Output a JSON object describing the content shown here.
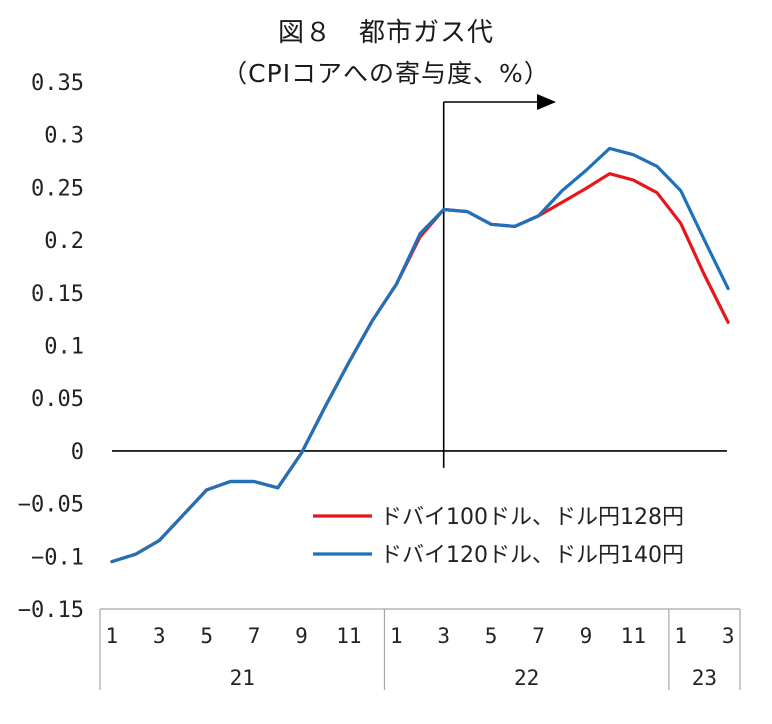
{
  "chart_data": {
    "type": "line",
    "title": "図８　都市ガス代",
    "subtitle": "（CPIコアへの寄与度、%）",
    "ylim": [
      -0.15,
      0.35
    ],
    "yticks": [
      "0.35",
      "0.3",
      "0.25",
      "0.2",
      "0.15",
      "0.1",
      "0.05",
      "0",
      "-0.05",
      "-0.1",
      "-0.15"
    ],
    "x": [
      "1",
      "2",
      "3",
      "4",
      "5",
      "6",
      "7",
      "8",
      "9",
      "10",
      "11",
      "12",
      "1",
      "2",
      "3",
      "4",
      "5",
      "6",
      "7",
      "8",
      "9",
      "10",
      "11",
      "12",
      "1",
      "2",
      "3"
    ],
    "xtick_labels": [
      "1",
      "",
      "3",
      "",
      "5",
      "",
      "7",
      "",
      "9",
      "",
      "11",
      "",
      "1",
      "",
      "3",
      "",
      "5",
      "",
      "7",
      "",
      "9",
      "",
      "11",
      "",
      "1",
      "",
      "3"
    ],
    "groups": [
      {
        "label": "21",
        "count": 12
      },
      {
        "label": "22",
        "count": 12
      },
      {
        "label": "23",
        "count": 3
      }
    ],
    "forecast_marker": {
      "x_index": 14
    },
    "series": [
      {
        "name": "ドバイ100ドル、ドル円128円",
        "color": "#e8161b",
        "values": [
          -0.105,
          -0.098,
          -0.085,
          -0.061,
          -0.037,
          -0.029,
          -0.029,
          -0.035,
          -0.002,
          0.042,
          0.084,
          0.124,
          0.158,
          0.203,
          0.229,
          0.227,
          0.215,
          0.213,
          0.223,
          0.236,
          0.249,
          0.263,
          0.257,
          0.245,
          0.216,
          0.167,
          0.122
        ]
      },
      {
        "name": "ドバイ120ドル、ドル円140円",
        "color": "#1f72b8",
        "values": [
          -0.105,
          -0.098,
          -0.085,
          -0.061,
          -0.037,
          -0.029,
          -0.029,
          -0.035,
          -0.002,
          0.042,
          0.084,
          0.124,
          0.158,
          0.206,
          0.229,
          0.227,
          0.215,
          0.213,
          0.223,
          0.247,
          0.266,
          0.287,
          0.281,
          0.27,
          0.247,
          0.2,
          0.154
        ]
      }
    ],
    "legend": {
      "position": "lower-right"
    },
    "grid": false
  }
}
